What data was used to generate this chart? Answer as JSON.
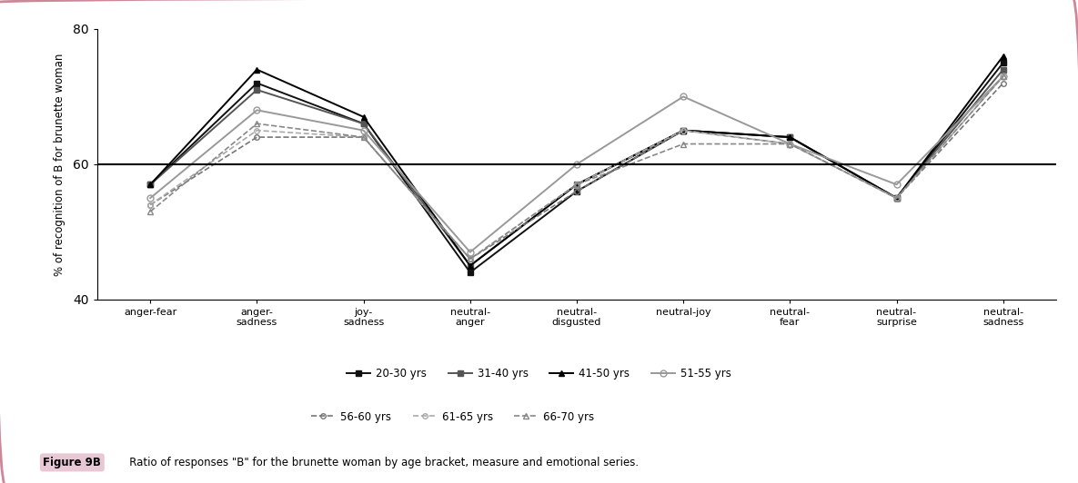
{
  "categories": [
    "anger-fear",
    "anger-\nsadness",
    "joy-\nsadness",
    "neutral-\nanger",
    "neutral-\ndisgusted",
    "neutral-joy",
    "neutral-\nfear",
    "neutral-\nsurprise",
    "neutral-\nsadness"
  ],
  "series": [
    {
      "label": "20-30 yrs",
      "values": [
        57,
        72,
        66,
        44,
        56,
        65,
        64,
        55,
        75
      ],
      "linestyle": "-",
      "marker": "s",
      "color": "#111111",
      "markersize": 4,
      "linewidth": 1.4,
      "fillstyle": "full"
    },
    {
      "label": "31-40 yrs",
      "values": [
        57,
        71,
        66,
        45,
        57,
        65,
        64,
        55,
        74
      ],
      "linestyle": "-",
      "marker": "s",
      "color": "#555555",
      "markersize": 4,
      "linewidth": 1.4,
      "fillstyle": "full"
    },
    {
      "label": "41-50 yrs",
      "values": [
        57,
        74,
        67,
        45,
        57,
        65,
        64,
        55,
        76
      ],
      "linestyle": "-",
      "marker": "^",
      "color": "#000000",
      "markersize": 5,
      "linewidth": 1.4,
      "fillstyle": "full"
    },
    {
      "label": "51-55 yrs",
      "values": [
        55,
        68,
        65,
        47,
        60,
        70,
        63,
        57,
        73
      ],
      "linestyle": "-",
      "marker": "o",
      "color": "#999999",
      "markersize": 5,
      "linewidth": 1.4,
      "fillstyle": "none"
    },
    {
      "label": "56-60 yrs",
      "values": [
        54,
        64,
        64,
        46,
        56,
        65,
        63,
        55,
        72
      ],
      "linestyle": "--",
      "marker": "o",
      "color": "#777777",
      "markersize": 4,
      "linewidth": 1.2,
      "fillstyle": "none"
    },
    {
      "label": "61-65 yrs",
      "values": [
        54,
        65,
        64,
        46,
        57,
        65,
        63,
        55,
        73
      ],
      "linestyle": "--",
      "marker": "o",
      "color": "#aaaaaa",
      "markersize": 4,
      "linewidth": 1.2,
      "fillstyle": "none"
    },
    {
      "label": "66-70 yrs",
      "values": [
        53,
        66,
        64,
        46,
        57,
        63,
        63,
        55,
        73
      ],
      "linestyle": "--",
      "marker": "^",
      "color": "#888888",
      "markersize": 4,
      "linewidth": 1.2,
      "fillstyle": "none"
    }
  ],
  "ylabel": "% of recognition of B for brunette woman",
  "ylim": [
    40,
    80
  ],
  "yticks": [
    40,
    60,
    80
  ],
  "hline": 60,
  "background_color": "#ffffff",
  "border_color": "#cc8899",
  "caption_label": "Figure 9B",
  "caption_text": "   Ratio of responses \"B\" for the brunette woman by age bracket, measure and emotional series.",
  "caption_bg": "#e8c8d4"
}
